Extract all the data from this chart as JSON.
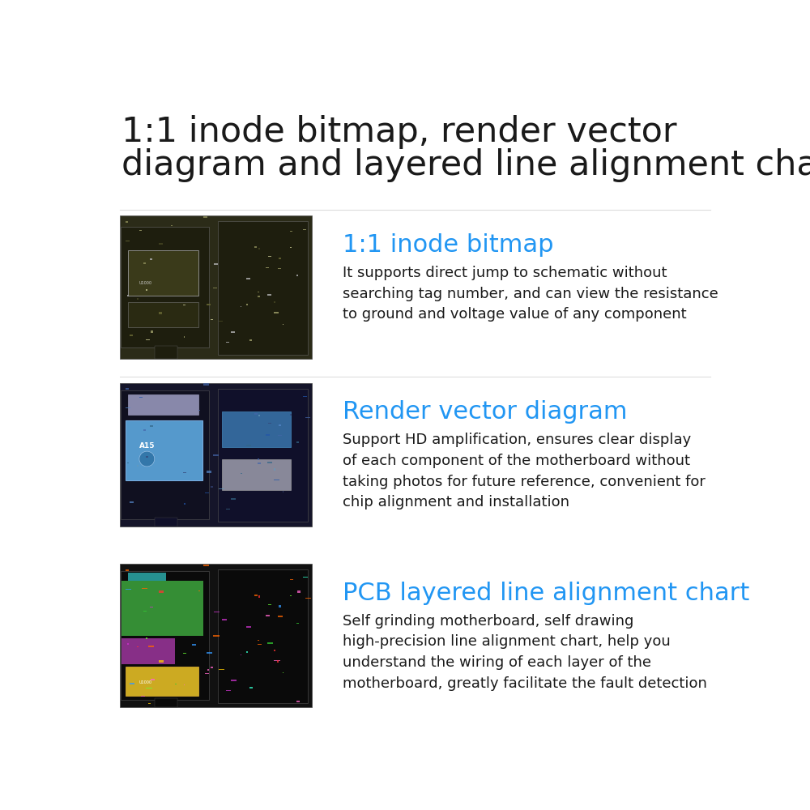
{
  "bg_color": "#ffffff",
  "title_line1": "1:1 inode bitmap, render vector",
  "title_line2": "diagram and layered line alignment chart",
  "title_color": "#1a1a1a",
  "title_fontsize": 31,
  "divider_color": "#dddddd",
  "sections": [
    {
      "heading": "1:1 inode bitmap",
      "heading_color": "#2196F3",
      "heading_fontsize": 22,
      "body": "It supports direct jump to schematic without\nsearching tag number, and can view the resistance\nto ground and voltage value of any component",
      "body_color": "#1a1a1a",
      "body_fontsize": 13,
      "board_type": "greyscale"
    },
    {
      "heading": "Render vector diagram",
      "heading_color": "#2196F3",
      "heading_fontsize": 22,
      "body": "Support HD amplification, ensures clear display\nof each component of the motherboard without\ntaking photos for future reference, convenient for\nchip alignment and installation",
      "body_color": "#1a1a1a",
      "body_fontsize": 13,
      "board_type": "colorful"
    },
    {
      "heading": "PCB layered line alignment chart",
      "heading_color": "#2196F3",
      "heading_fontsize": 22,
      "body": "Self grinding motherboard, self drawing\nhigh-precision line alignment chart, help you\nunderstand the wiring of each layer of the\nmotherboard, greatly facilitate the fault detection",
      "body_color": "#1a1a1a",
      "body_fontsize": 13,
      "board_type": "rainbow"
    }
  ]
}
